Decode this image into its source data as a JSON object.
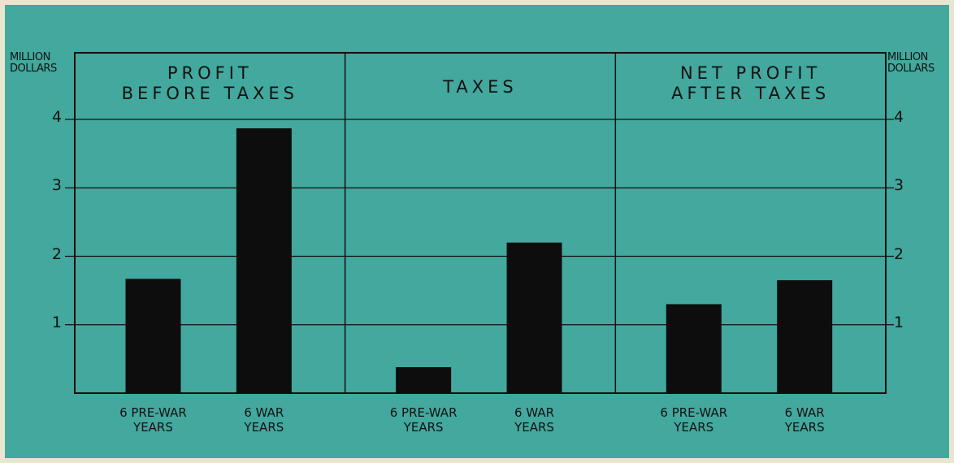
{
  "chart_data": [
    {
      "type": "bar",
      "title": "PROFIT\nBEFORE TAXES",
      "ylabel": "MILLION\nDOLLARS",
      "categories": [
        "6 PRE-WAR\nYEARS",
        "6 WAR\nYEARS"
      ],
      "values": [
        1.67,
        3.87
      ],
      "color": "#0d0d0d",
      "ylim": [
        0,
        4
      ],
      "yticks": [
        1,
        2,
        3,
        4
      ],
      "grid": true
    },
    {
      "type": "bar",
      "title": "TAXES",
      "categories": [
        "6 PRE-WAR\nYEARS",
        "6 WAR\nYEARS"
      ],
      "values": [
        0.38,
        2.2
      ],
      "color": "#0d0d0d",
      "ylim": [
        0,
        4
      ],
      "yticks": [
        1,
        2,
        3,
        4
      ],
      "grid": true
    },
    {
      "type": "bar",
      "title": "NET PROFIT\nAFTER TAXES",
      "ylabel": "MILLION\nDOLLARS",
      "categories": [
        "6 PRE-WAR\nYEARS",
        "6 WAR\nYEARS"
      ],
      "values": [
        1.3,
        1.65
      ],
      "color": "#0d0d0d",
      "ylim": [
        0,
        4
      ],
      "yticks": [
        1,
        2,
        3,
        4
      ],
      "grid": true
    }
  ]
}
